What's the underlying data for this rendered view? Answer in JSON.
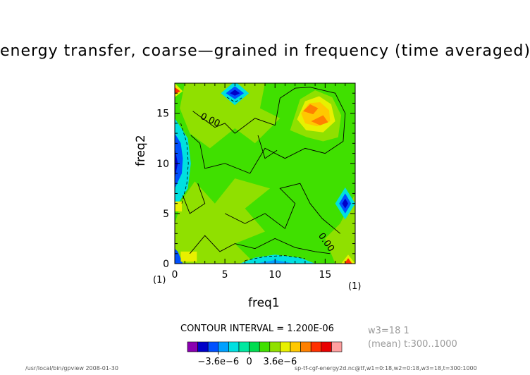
{
  "figure": {
    "title": "energy transfer, coarse—grained in frequency (time averaged)",
    "contour_interval": "CONTOUR INTERVAL = 1.200E-06",
    "subtitle_w3": "w3=18 1",
    "subtitle_mean": "(mean) t:300..1000",
    "footer_left": "/usr/local/bin/gpview  2008-01-30",
    "footer_right": "sp-tf-cgf-energy2d.nc@tf,w1=0:18,w2=0:18,w3=18,t=300:1000",
    "x_unit": "(1)",
    "y_unit": "(1)"
  },
  "chart_data": {
    "type": "heatmap",
    "title": "energy transfer, coarse—grained in frequency (time averaged)",
    "xlabel": "freq1",
    "ylabel": "freq2",
    "xlim": [
      0,
      18
    ],
    "ylim": [
      0,
      18
    ],
    "x_ticks": [
      0,
      5,
      10,
      15
    ],
    "y_ticks": [
      0,
      5,
      10,
      15
    ],
    "contour_interval": 1.2e-06,
    "contour_labels": [
      {
        "text": "0.00",
        "x": 2.5,
        "y": 14.5,
        "angle": 25
      },
      {
        "text": "0.00",
        "x": 14.3,
        "y": 2.8,
        "angle": 55
      }
    ],
    "colorbar": {
      "colors": [
        "#8a00b0",
        "#0000c8",
        "#0050ff",
        "#00a0ff",
        "#00e0e0",
        "#00e8a0",
        "#00dc50",
        "#40e000",
        "#90e000",
        "#e8f000",
        "#ffc800",
        "#ff8000",
        "#ff3000",
        "#e80000",
        "#ffa0a0"
      ],
      "tick_labels": [
        "−3.6e−6",
        "0",
        "3.6e−6"
      ],
      "tick_values": [
        -3.6e-06,
        0,
        3.6e-06
      ]
    },
    "field_features": [
      {
        "kind": "background",
        "level": 0,
        "description_free": true
      },
      {
        "kind": "region",
        "level": "slightly-positive",
        "x": 3,
        "y": 3
      },
      {
        "kind": "region",
        "level": "slightly-positive",
        "x": 3,
        "y": 15
      },
      {
        "kind": "maximum",
        "x": 13.5,
        "y": 14.5,
        "level": "strong-positive"
      },
      {
        "kind": "minimum",
        "x": 6,
        "y": 17,
        "level": "strong-negative"
      },
      {
        "kind": "minimum",
        "x": 17,
        "y": 6,
        "level": "strong-negative"
      },
      {
        "kind": "minimum",
        "x": 0,
        "y": 10,
        "level": "strong-negative"
      },
      {
        "kind": "minimum",
        "x": 10,
        "y": 0,
        "level": "negative"
      },
      {
        "kind": "maximum",
        "x": 0.3,
        "y": 17.2,
        "level": "strong-positive"
      },
      {
        "kind": "maximum",
        "x": 17.2,
        "y": 0.3,
        "level": "strong-positive"
      }
    ]
  }
}
